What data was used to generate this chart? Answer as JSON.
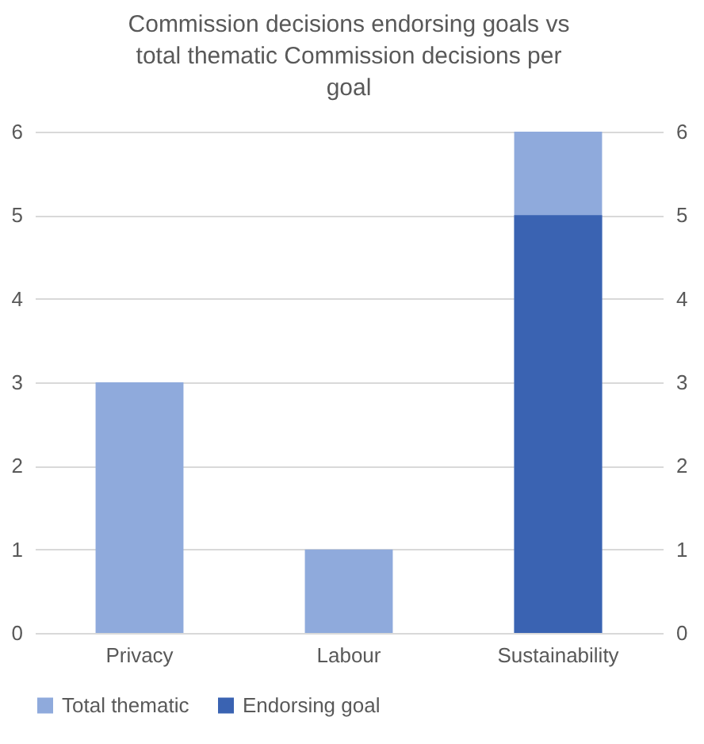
{
  "chart_data": {
    "type": "bar",
    "title": "Commission decisions endorsing goals vs total thematic Commission decisions per goal",
    "categories": [
      "Privacy",
      "Labour",
      "Sustainability"
    ],
    "series": [
      {
        "name": "Total thematic",
        "color": "#8faadc",
        "values": [
          3,
          1,
          6
        ]
      },
      {
        "name": "Endorsing goal",
        "color": "#3a63b2",
        "values": [
          0,
          0,
          5
        ],
        "axis": "y2"
      }
    ],
    "ylim": [
      0,
      6
    ],
    "yticks": [
      0,
      1,
      2,
      3,
      4,
      5,
      6
    ],
    "y2lim": [
      0,
      6
    ],
    "y2ticks": [
      0,
      1,
      2,
      3,
      4,
      5,
      6
    ],
    "grid": "y",
    "legend": "bottom"
  }
}
